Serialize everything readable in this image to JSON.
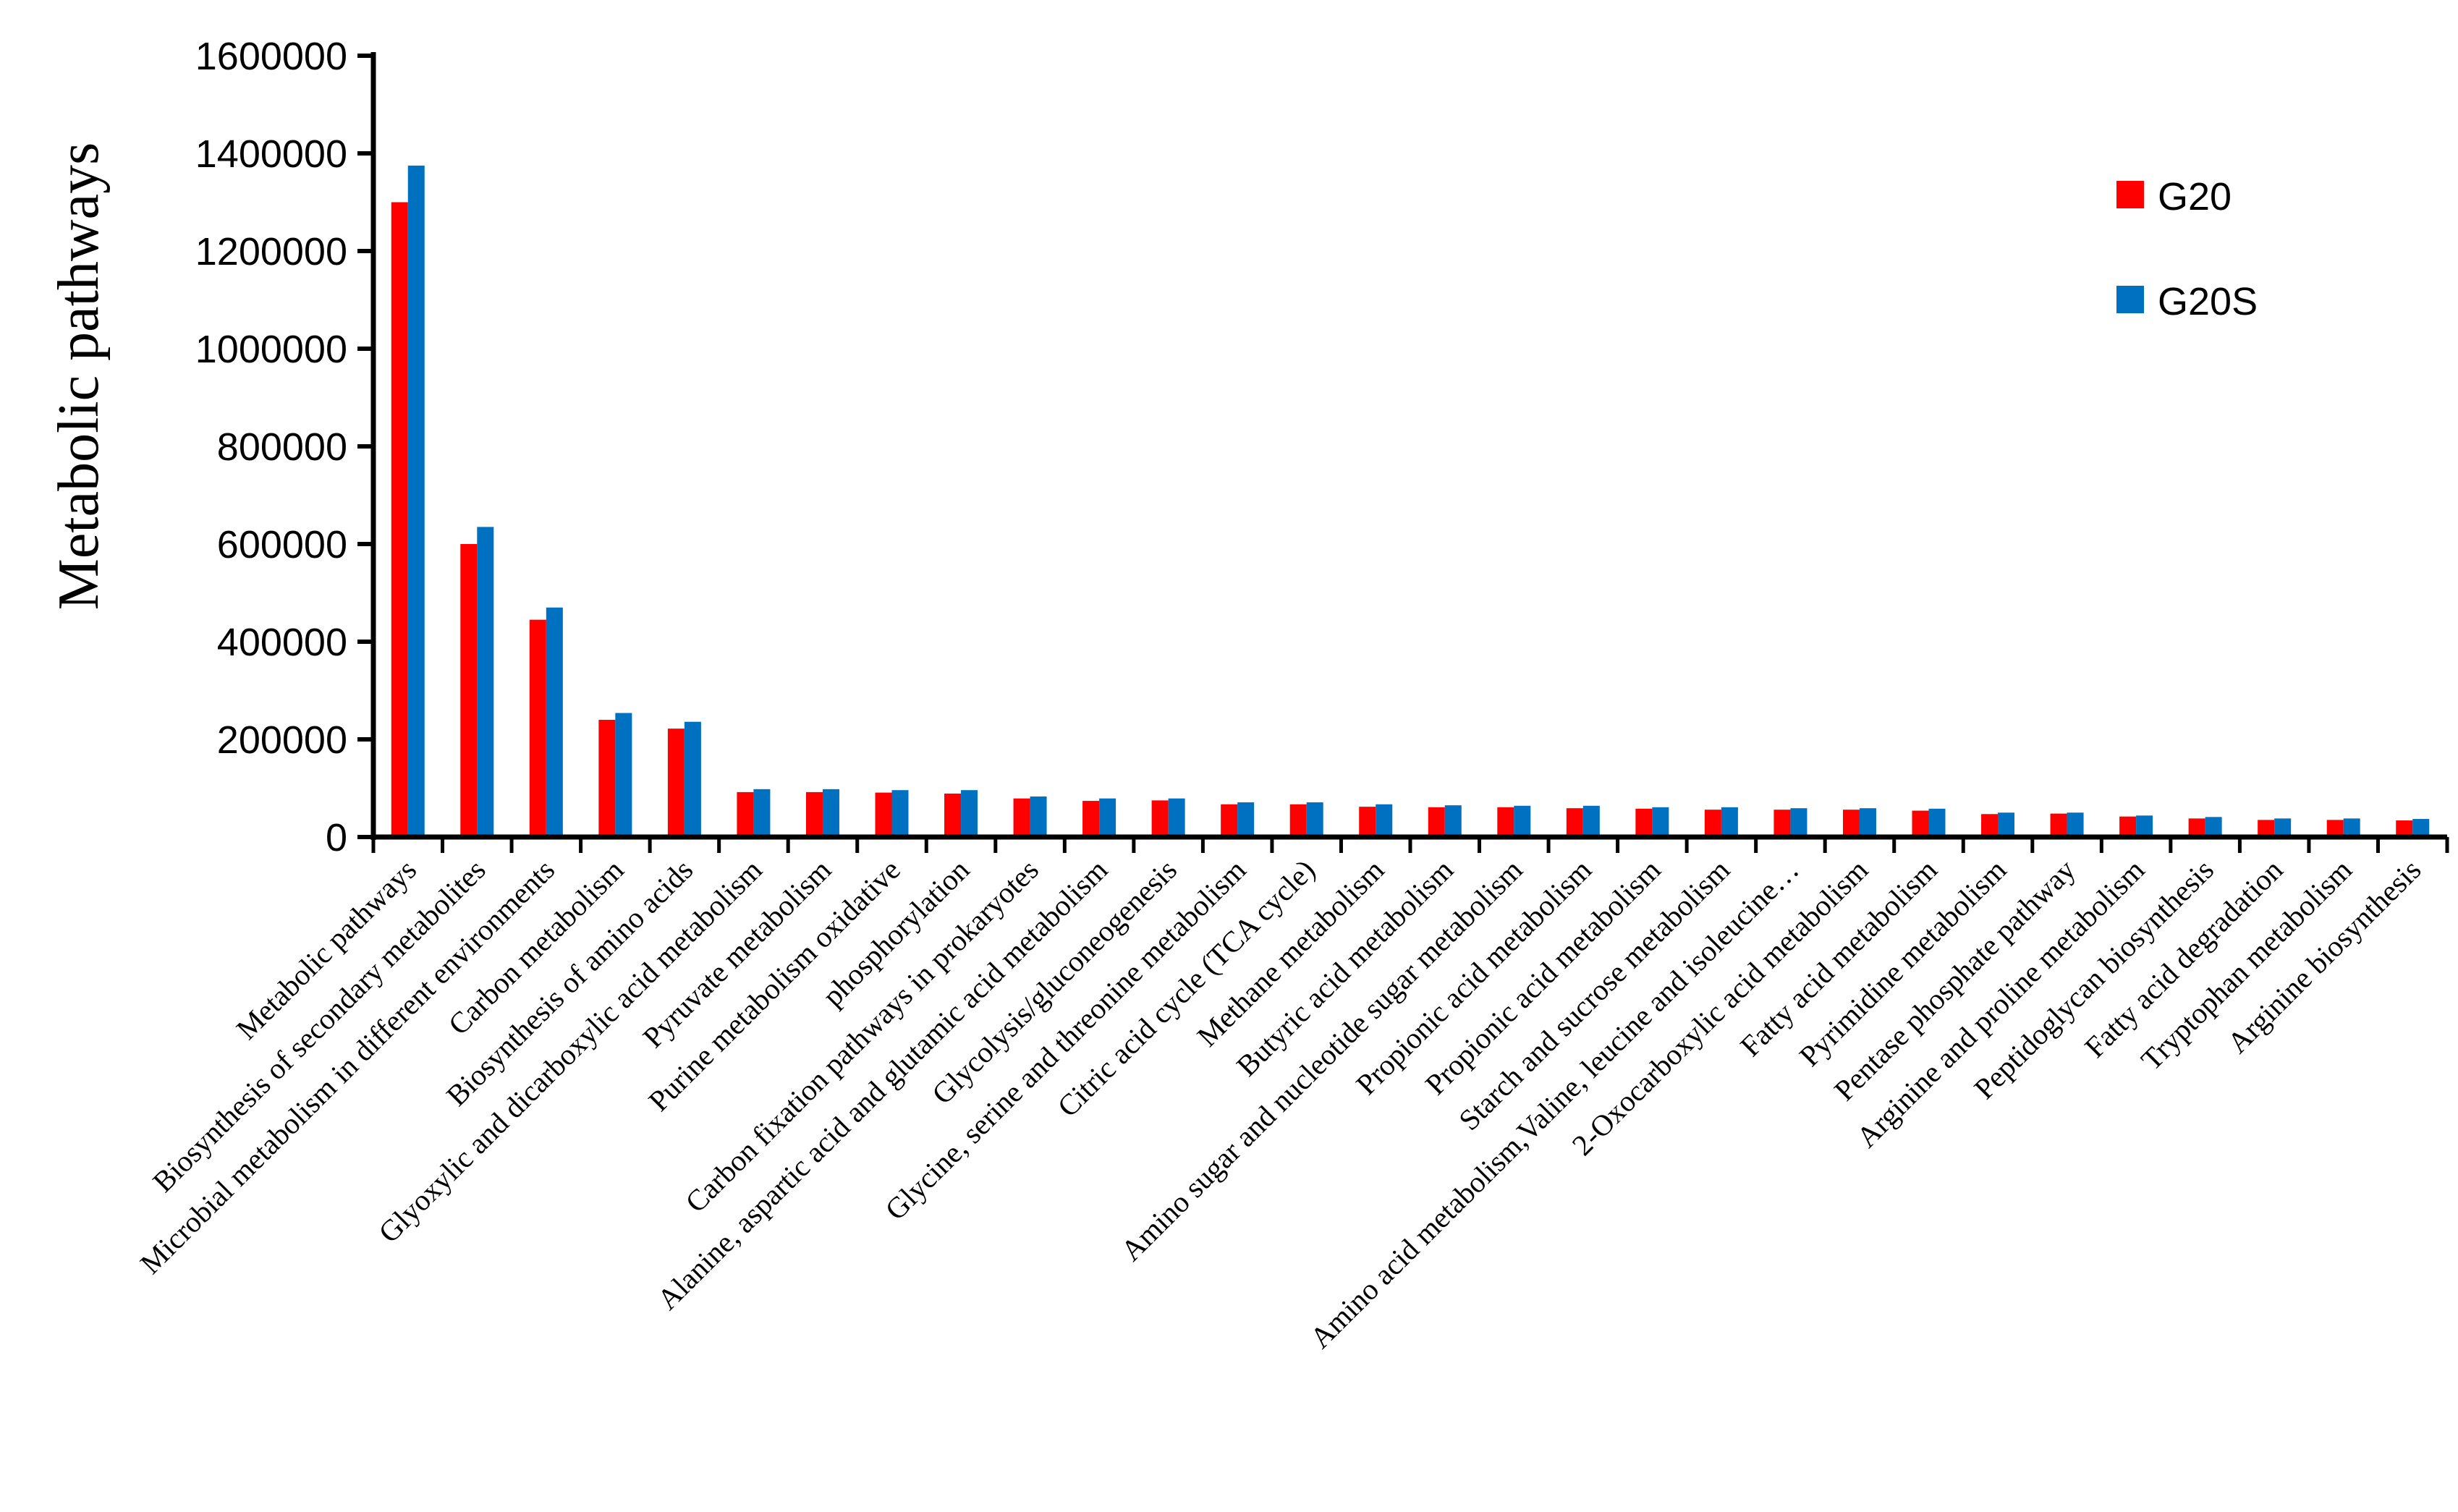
{
  "chart_data": {
    "type": "bar",
    "title": "",
    "xlabel": "",
    "ylabel": "Metabolic pathways",
    "ylim": [
      0,
      1600000
    ],
    "yticks": [
      0,
      200000,
      400000,
      600000,
      800000,
      1000000,
      1200000,
      1400000,
      1600000
    ],
    "grid": false,
    "legend_placement": "top-right",
    "categories": [
      "Metabolic pathways",
      "Biosynthesis of secondary metabolites",
      "Microbial metabolism in different environments",
      "Carbon metabolism",
      "Biosynthesis of amino acids",
      "Glyoxylic and dicarboxylic acid metabolism",
      "Pyruvate metabolism",
      "Purine metabolism oxidative",
      "phosphorylation",
      "Carbon fixation pathways in prokaryotes",
      "Alanine, aspartic acid and glutamic acid metabolism",
      "Glycolysis/gluconeogenesis",
      "Glycine, serine and threonine metabolism",
      "Citric acid cycle (TCA cycle)",
      "Methane metabolism",
      "Butyric acid metabolism",
      "Amino sugar and nucleotide sugar metabolism",
      "Propionic acid metabolism",
      "Propionic acid metabolism",
      "Starch and sucrose metabolism",
      "Amino acid metabolism,Valine, leucine and isoleucine…",
      "2-Oxocarboxylic acid metabolism",
      "Fatty acid metabolism",
      "Pyrimidine metabolism",
      "Pentase phosphate pathway",
      "Arginine and proline metabolism",
      "Peptidoglycan biosynthesis",
      "Fatty acid degradation",
      "Tryptophan metabolism",
      "Arginine biosynthesis"
    ],
    "series": [
      {
        "name": "G20",
        "color": "#ff0000",
        "values": [
          1300000,
          600000,
          445000,
          240000,
          222000,
          92000,
          92000,
          91000,
          89000,
          79000,
          74000,
          75000,
          67000,
          67000,
          62000,
          61000,
          61000,
          59000,
          58000,
          56000,
          56000,
          56000,
          54000,
          47000,
          48000,
          42000,
          38000,
          35000,
          35000,
          34000
        ]
      },
      {
        "name": "G20S",
        "color": "#0070c0",
        "values": [
          1375000,
          635000,
          470000,
          254000,
          236000,
          98000,
          98000,
          96000,
          96000,
          83000,
          79000,
          79000,
          71000,
          71000,
          67000,
          65000,
          64000,
          64000,
          61000,
          61000,
          59000,
          59000,
          58000,
          50000,
          50000,
          44000,
          41000,
          38000,
          38000,
          37000
        ]
      }
    ],
    "last_label_color": "#666666"
  }
}
